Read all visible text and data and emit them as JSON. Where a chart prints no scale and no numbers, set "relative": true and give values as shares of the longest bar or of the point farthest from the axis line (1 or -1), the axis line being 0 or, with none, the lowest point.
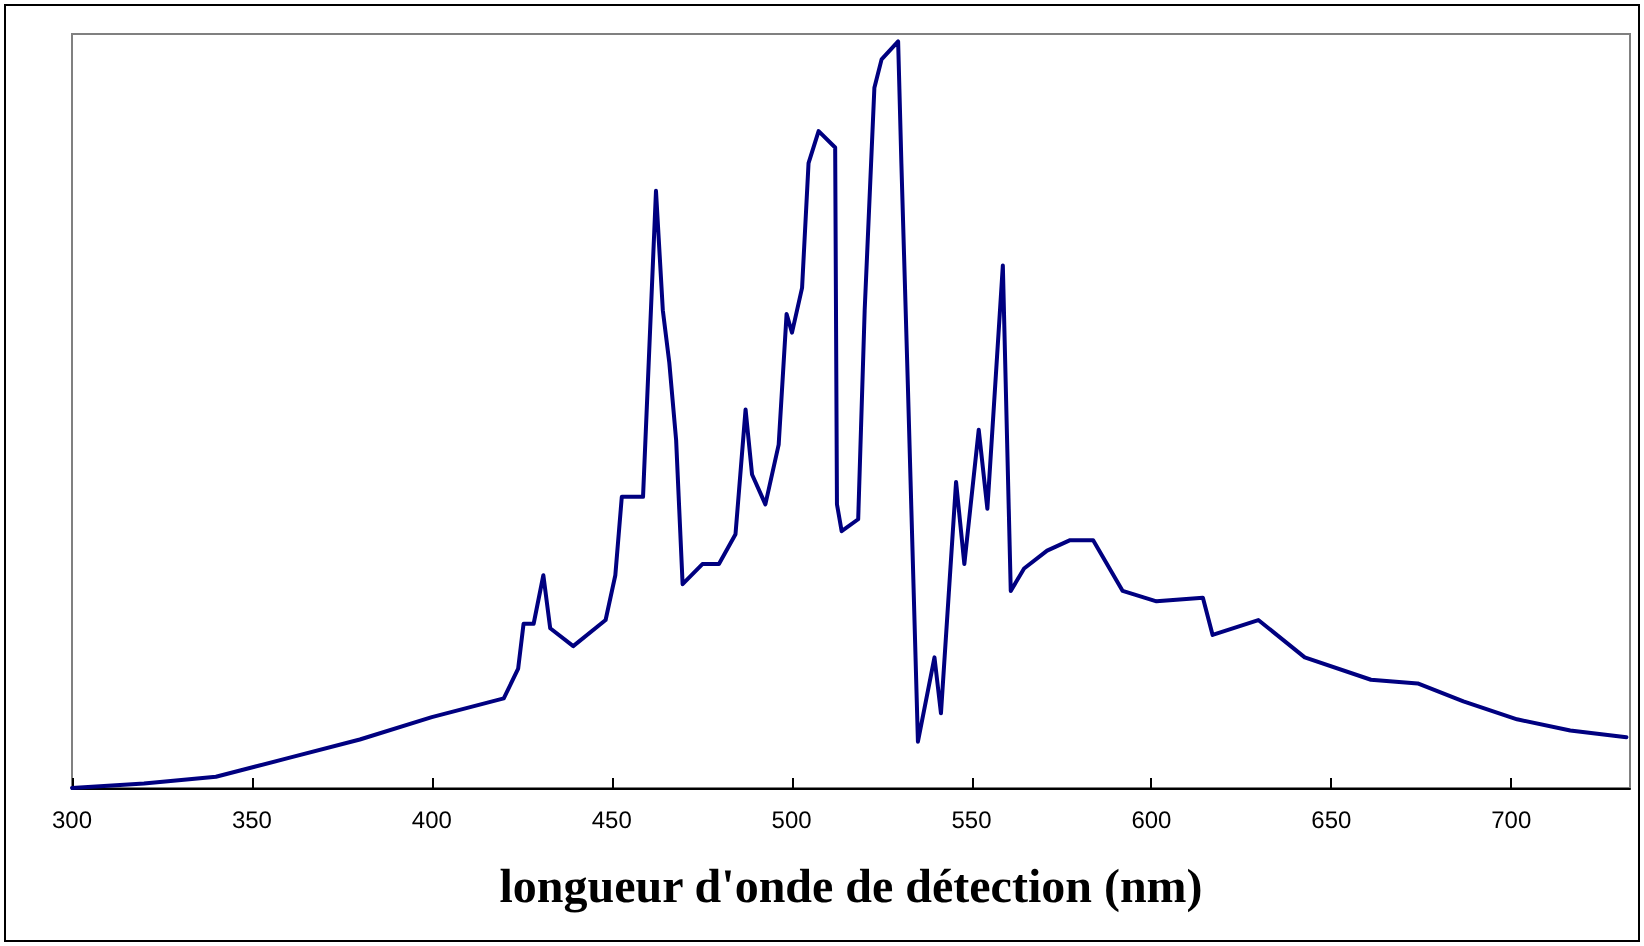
{
  "chart_data": {
    "type": "line",
    "relative": true,
    "xlabel": "longueur d'onde de détection (nm)",
    "xlim": [
      300,
      733
    ],
    "xticks": [
      300,
      350,
      400,
      450,
      500,
      550,
      600,
      650,
      700
    ],
    "grid": false,
    "marker": "none",
    "line_style": "solid",
    "series": [
      {
        "color": "#000080",
        "x": [
          300,
          320,
          340,
          360,
          380,
          400,
          420,
          424,
          425.5,
          428.3,
          431,
          432.9,
          439.3,
          448.3,
          451,
          452.8,
          458.7,
          462.3,
          464.2,
          466,
          467.9,
          469.7,
          475.2,
          479.8,
          484.4,
          487.2,
          489,
          492.7,
          496.4,
          498.6,
          500.1,
          502.9,
          504.7,
          507.5,
          512.1,
          512.6,
          513.9,
          518.5,
          520.3,
          523,
          525,
          529.6,
          530.5,
          532.3,
          535.1,
          539.7,
          541.5,
          545.7,
          548,
          552,
          554.4,
          558.7,
          560.9,
          564.6,
          571,
          577.4,
          583.8,
          592,
          601.4,
          614.3,
          617,
          629.7,
          642.6,
          661,
          674,
          686.7,
          701.6,
          716.4,
          732
        ],
        "values": [
          0,
          0.006,
          0.015,
          0.04,
          0.065,
          0.095,
          0.12,
          0.16,
          0.22,
          0.22,
          0.285,
          0.214,
          0.19,
          0.225,
          0.285,
          0.39,
          0.39,
          0.8,
          0.64,
          0.57,
          0.466,
          0.273,
          0.3,
          0.3,
          0.34,
          0.507,
          0.42,
          0.38,
          0.46,
          0.635,
          0.61,
          0.67,
          0.837,
          0.88,
          0.858,
          0.38,
          0.344,
          0.36,
          0.64,
          0.938,
          0.976,
          1,
          0.837,
          0.54,
          0.062,
          0.175,
          0.1,
          0.41,
          0.3,
          0.48,
          0.374,
          0.7,
          0.264,
          0.294,
          0.318,
          0.332,
          0.332,
          0.264,
          0.25,
          0.255,
          0.205,
          0.225,
          0.175,
          0.145,
          0.14,
          0.116,
          0.092,
          0.077,
          0.068
        ]
      }
    ]
  }
}
